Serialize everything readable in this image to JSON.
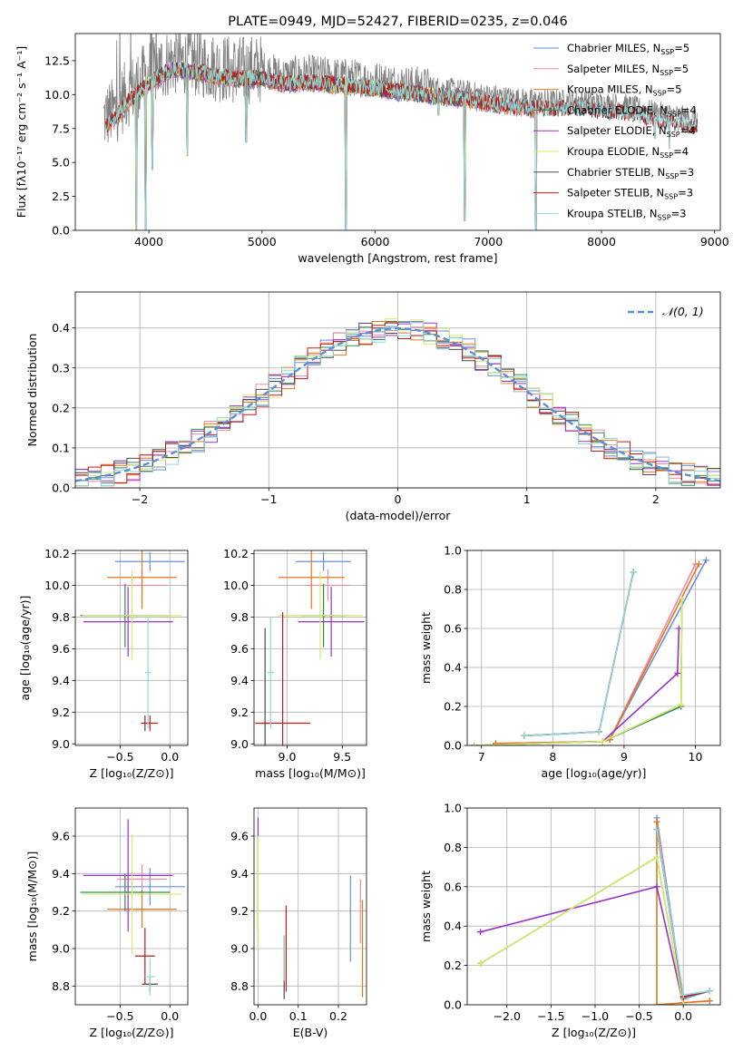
{
  "colors": {
    "chabrier_miles": "#6a8fdb",
    "salpeter_miles": "#ef8aa4",
    "kroupa_miles": "#e5771b",
    "chabrier_elodie": "#2e8b57",
    "salpeter_elodie": "#9b30c9",
    "kroupa_elodie": "#d4ec6b",
    "chabrier_stelib": "#4a4a4a",
    "salpeter_stelib": "#c21a1a",
    "kroupa_stelib": "#8fdad7",
    "data_spectrum": "#808080",
    "normal_curve": "#5b8ed8"
  },
  "chart_data": [
    {
      "id": "spectrum",
      "type": "line",
      "title": "PLATE=0949, MJD=52427, FIBERID=0235, z=0.046",
      "xlabel": "wavelength [Angstrom, rest frame]",
      "ylabel": "Flux [fλ10⁻¹⁷ erg cm⁻² s⁻¹ A⁻¹]",
      "xlim": [
        3350,
        9050
      ],
      "ylim": [
        0,
        14.5
      ],
      "xticks": [
        "4000",
        "5000",
        "6000",
        "7000",
        "8000",
        "9000"
      ],
      "yticks": [
        "0.0",
        "2.5",
        "5.0",
        "7.5",
        "10.0",
        "12.5"
      ],
      "grid": false,
      "legend_position": "top-right",
      "legend": [
        {
          "label": "Chabrier MILES, N",
          "sub": "SSP",
          "suffix": "=5",
          "color_key": "chabrier_miles"
        },
        {
          "label": "Salpeter MILES, N",
          "sub": "SSP",
          "suffix": "=5",
          "color_key": "salpeter_miles"
        },
        {
          "label": "Kroupa MILES, N",
          "sub": "SSP",
          "suffix": "=5",
          "color_key": "kroupa_miles"
        },
        {
          "label": "Chabrier ELODIE, N",
          "sub": "SSP",
          "suffix": "=4",
          "color_key": "chabrier_elodie"
        },
        {
          "label": "Salpeter ELODIE, N",
          "sub": "SSP",
          "suffix": "=4",
          "color_key": "salpeter_elodie"
        },
        {
          "label": "Kroupa ELODIE, N",
          "sub": "SSP",
          "suffix": "=4",
          "color_key": "kroupa_elodie"
        },
        {
          "label": "Chabrier STELIB, N",
          "sub": "SSP",
          "suffix": "=3",
          "color_key": "chabrier_stelib"
        },
        {
          "label": "Salpeter STELIB, N",
          "sub": "SSP",
          "suffix": "=3",
          "color_key": "salpeter_stelib"
        },
        {
          "label": "Kroupa STELIB, N",
          "sub": "SSP",
          "suffix": "=3",
          "color_key": "kroupa_stelib"
        }
      ],
      "envelope": {
        "x": [
          3600,
          3700,
          3800,
          4000,
          4200,
          4400,
          4600,
          4800,
          5000,
          5200,
          5400,
          5600,
          5800,
          6000,
          6200,
          6400,
          6600,
          6800,
          7000,
          7200,
          7400,
          7600,
          7800,
          8000,
          8200,
          8400,
          8600,
          8800
        ],
        "y": [
          8.3,
          8.8,
          10.0,
          11.5,
          12.5,
          12.4,
          12.0,
          11.8,
          11.9,
          11.4,
          11.6,
          11.4,
          11.3,
          11.1,
          10.9,
          10.7,
          10.5,
          10.3,
          10.0,
          9.8,
          9.6,
          9.6,
          9.6,
          9.4,
          9.3,
          8.9,
          8.6,
          8.3
        ]
      },
      "dips": [
        {
          "x": 3890,
          "y": 0.0
        },
        {
          "x": 3970,
          "y": 0.0
        },
        {
          "x": 4030,
          "y": 4.5
        },
        {
          "x": 4340,
          "y": 5.5
        },
        {
          "x": 4860,
          "y": 6.5
        },
        {
          "x": 5740,
          "y": 0.0
        },
        {
          "x": 6560,
          "y": 8.5
        },
        {
          "x": 6790,
          "y": 0.7
        },
        {
          "x": 7420,
          "y": 0.0
        },
        {
          "x": 8470,
          "y": 6.8
        },
        {
          "x": 8600,
          "y": 6.0
        }
      ]
    },
    {
      "id": "residuals",
      "type": "line",
      "xlabel": "(data-model)/error",
      "ylabel": "Normed distribution",
      "xlim": [
        -2.5,
        2.5
      ],
      "ylim": [
        0,
        0.49
      ],
      "xticks": [
        -2,
        -1,
        0,
        1,
        2
      ],
      "xtick_labels": [
        "−2",
        "−1",
        "0",
        "1",
        "2"
      ],
      "yticks": [
        "0.0",
        "0.1",
        "0.2",
        "0.3",
        "0.4"
      ],
      "grid": true,
      "legend_position": "top-right",
      "legend": [
        {
          "label": "𝒩(0, 1)",
          "color_key": "normal_curve",
          "style": "dashed"
        }
      ],
      "bin_width": 0.1,
      "normal_curve": {
        "mean": 0,
        "sigma": 1
      }
    },
    {
      "id": "age_vs_Z",
      "type": "scatter",
      "xlabel": "Z [log₁₀(Z/Z⊙)]",
      "ylabel": "age  [log₁₀(age/yr)]",
      "xlim": [
        -0.95,
        0.18
      ],
      "ylim": [
        8.99,
        10.22
      ],
      "xticks": [
        "−0.5",
        "0.0"
      ],
      "yticks": [
        "9.0",
        "9.2",
        "9.4",
        "9.6",
        "9.8",
        "10.0",
        "10.2"
      ],
      "grid": true,
      "points": [
        {
          "color_key": "chabrier_miles",
          "x": -0.2,
          "xerr": 0.35,
          "y": 10.15,
          "yerr": 0.06
        },
        {
          "color_key": "salpeter_miles",
          "x": -0.28,
          "xerr": 0.25,
          "y": 10.0,
          "yerr": 0.1
        },
        {
          "color_key": "kroupa_miles",
          "x": -0.28,
          "xerr": 0.35,
          "y": 10.05,
          "yerr": 0.2
        },
        {
          "color_key": "chabrier_elodie",
          "x": -0.45,
          "xerr": 0.45,
          "y": 9.81,
          "yerr": 0.2
        },
        {
          "color_key": "salpeter_elodie",
          "x": -0.42,
          "xerr": 0.45,
          "y": 9.77,
          "yerr": 0.22
        },
        {
          "color_key": "kroupa_elodie",
          "x": -0.38,
          "xerr": 0.5,
          "y": 9.81,
          "yerr": 0.28
        },
        {
          "color_key": "chabrier_stelib",
          "x": -0.25,
          "xerr": 0.04,
          "y": 9.13,
          "yerr": 0.05
        },
        {
          "color_key": "salpeter_stelib",
          "x": -0.2,
          "xerr": 0.08,
          "y": 9.13,
          "yerr": 0.05
        },
        {
          "color_key": "kroupa_stelib",
          "x": -0.22,
          "xerr": 0.03,
          "y": 9.45,
          "yerr": 0.35
        }
      ]
    },
    {
      "id": "age_vs_mass",
      "type": "scatter",
      "xlabel": "mass [log₁₀(M/M⊙)]",
      "ylabel": "",
      "xlim": [
        8.7,
        9.72
      ],
      "ylim": [
        8.99,
        10.22
      ],
      "xticks": [
        "9.0",
        "9.5"
      ],
      "yticks": [
        "9.0",
        "9.2",
        "9.4",
        "9.6",
        "9.8",
        "10.0",
        "10.2"
      ],
      "grid": true,
      "points": [
        {
          "color_key": "chabrier_miles",
          "x": 9.33,
          "xerr": 0.25,
          "y": 10.15,
          "yerr": 0.06
        },
        {
          "color_key": "salpeter_miles",
          "x": 9.37,
          "xerr": 0.2,
          "y": 10.0,
          "yerr": 0.1
        },
        {
          "color_key": "kroupa_miles",
          "x": 9.22,
          "xerr": 0.3,
          "y": 10.05,
          "yerr": 0.2
        },
        {
          "color_key": "chabrier_elodie",
          "x": 9.33,
          "xerr": 0.2,
          "y": 9.81,
          "yerr": 0.2
        },
        {
          "color_key": "salpeter_elodie",
          "x": 9.4,
          "xerr": 0.3,
          "y": 9.77,
          "yerr": 0.22
        },
        {
          "color_key": "kroupa_elodie",
          "x": 9.3,
          "xerr": 0.38,
          "y": 9.81,
          "yerr": 0.28
        },
        {
          "color_key": "chabrier_stelib",
          "x": 8.8,
          "xerr": 0.04,
          "y": 9.13,
          "yerr": 0.6
        },
        {
          "color_key": "salpeter_stelib",
          "x": 8.96,
          "xerr": 0.25,
          "y": 9.13,
          "yerr": 0.7
        },
        {
          "color_key": "kroupa_stelib",
          "x": 8.85,
          "xerr": 0.03,
          "y": 9.45,
          "yerr": 0.35
        }
      ]
    },
    {
      "id": "weight_vs_age",
      "type": "line",
      "xlabel": "age  [log₁₀(age/yr)]",
      "ylabel": "mass weight",
      "xlim": [
        6.8,
        10.35
      ],
      "ylim": [
        0,
        1.0
      ],
      "xticks": [
        "7",
        "8",
        "9",
        "10"
      ],
      "yticks": [
        "0.0",
        "0.2",
        "0.4",
        "0.6",
        "0.8",
        "1.0"
      ],
      "grid": true,
      "series": [
        {
          "color_key": "chabrier_miles",
          "x": [
            7.2,
            8.7,
            8.8,
            10.15
          ],
          "y": [
            0.01,
            0.02,
            0.03,
            0.95
          ]
        },
        {
          "color_key": "salpeter_miles",
          "x": [
            7.2,
            8.7,
            8.8,
            10.0
          ],
          "y": [
            0.01,
            0.02,
            0.03,
            0.93
          ]
        },
        {
          "color_key": "kroupa_miles",
          "x": [
            7.2,
            8.7,
            8.8,
            10.05
          ],
          "y": [
            0.01,
            0.02,
            0.03,
            0.93
          ]
        },
        {
          "color_key": "chabrier_elodie",
          "x": [
            6.9,
            8.7,
            9.8,
            9.81
          ],
          "y": [
            0.0,
            0.02,
            0.2,
            0.75
          ]
        },
        {
          "color_key": "salpeter_elodie",
          "x": [
            6.9,
            8.7,
            9.75,
            9.77
          ],
          "y": [
            0.0,
            0.02,
            0.37,
            0.6
          ]
        },
        {
          "color_key": "kroupa_elodie",
          "x": [
            6.9,
            8.7,
            9.8,
            9.81
          ],
          "y": [
            0.0,
            0.02,
            0.21,
            0.75
          ]
        },
        {
          "color_key": "chabrier_stelib",
          "x": [
            7.6,
            8.65,
            9.13
          ],
          "y": [
            0.05,
            0.07,
            0.89
          ]
        },
        {
          "color_key": "salpeter_stelib",
          "x": [
            7.6,
            8.65,
            9.13
          ],
          "y": [
            0.05,
            0.07,
            0.89
          ]
        },
        {
          "color_key": "kroupa_stelib",
          "x": [
            7.6,
            8.65,
            9.13
          ],
          "y": [
            0.05,
            0.07,
            0.89
          ]
        }
      ]
    },
    {
      "id": "mass_vs_Z",
      "type": "scatter",
      "xlabel": "Z [log₁₀(Z/Z⊙)]",
      "ylabel": "mass [log₁₀(M/M⊙)]",
      "xlim": [
        -0.95,
        0.18
      ],
      "ylim": [
        8.7,
        9.75
      ],
      "xticks": [
        "−0.5",
        "0.0"
      ],
      "yticks": [
        "8.8",
        "9.0",
        "9.2",
        "9.4",
        "9.6"
      ],
      "grid": true,
      "points": [
        {
          "color_key": "chabrier_miles",
          "x": -0.2,
          "xerr": 0.35,
          "y": 9.33,
          "yerr": 0.1
        },
        {
          "color_key": "salpeter_miles",
          "x": -0.28,
          "xerr": 0.25,
          "y": 9.37,
          "yerr": 0.08
        },
        {
          "color_key": "kroupa_miles",
          "x": -0.28,
          "xerr": 0.35,
          "y": 9.21,
          "yerr": 0.1
        },
        {
          "color_key": "chabrier_elodie",
          "x": -0.45,
          "xerr": 0.45,
          "y": 9.3,
          "yerr": 0.1
        },
        {
          "color_key": "salpeter_elodie",
          "x": -0.42,
          "xerr": 0.45,
          "y": 9.39,
          "yerr": 0.3
        },
        {
          "color_key": "kroupa_elodie",
          "x": -0.38,
          "xerr": 0.5,
          "y": 9.29,
          "yerr": 0.32
        },
        {
          "color_key": "chabrier_stelib",
          "x": -0.2,
          "xerr": 0.08,
          "y": 8.81,
          "yerr": 0.04
        },
        {
          "color_key": "salpeter_stelib",
          "x": -0.25,
          "xerr": 0.1,
          "y": 8.96,
          "yerr": 0.15
        },
        {
          "color_key": "kroupa_stelib",
          "x": -0.2,
          "xerr": 0.05,
          "y": 8.85,
          "yerr": 0.1
        }
      ]
    },
    {
      "id": "mass_vs_ebv",
      "type": "scatter",
      "xlabel": "E(B-V)",
      "ylabel": "",
      "xlim": [
        -0.01,
        0.27
      ],
      "ylim": [
        8.7,
        9.75
      ],
      "xticks": [
        "0.0",
        "0.1",
        "0.2"
      ],
      "yticks": [
        "8.8",
        "9.0",
        "9.2",
        "9.4",
        "9.6"
      ],
      "grid": true,
      "points": [
        {
          "color_key": "chabrier_miles",
          "x": 0.23,
          "xerr": 0.0,
          "y": 9.16,
          "yerr": 0.23
        },
        {
          "color_key": "salpeter_miles",
          "x": 0.255,
          "xerr": 0.0,
          "y": 9.2,
          "yerr": 0.17
        },
        {
          "color_key": "kroupa_miles",
          "x": 0.26,
          "xerr": 0.0,
          "y": 9.0,
          "yerr": 0.26
        },
        {
          "color_key": "chabrier_elodie",
          "x": 0.0,
          "xerr": 0.0,
          "y": 9.3,
          "yerr": 0.3
        },
        {
          "color_key": "salpeter_elodie",
          "x": 0.0,
          "xerr": 0.0,
          "y": 9.4,
          "yerr": 0.3
        },
        {
          "color_key": "kroupa_elodie",
          "x": 0.0,
          "xerr": 0.0,
          "y": 9.3,
          "yerr": 0.3
        },
        {
          "color_key": "chabrier_stelib",
          "x": 0.065,
          "xerr": 0.0,
          "y": 8.9,
          "yerr": 0.17
        },
        {
          "color_key": "salpeter_stelib",
          "x": 0.07,
          "xerr": 0.0,
          "y": 9.0,
          "yerr": 0.23
        },
        {
          "color_key": "kroupa_stelib",
          "x": 0.065,
          "xerr": 0.0,
          "y": 8.95,
          "yerr": 0.12
        }
      ]
    },
    {
      "id": "weight_vs_Z",
      "type": "line",
      "xlabel": "Z [log₁₀(Z/Z⊙)]",
      "ylabel": "mass weight",
      "xlim": [
        -2.45,
        0.42
      ],
      "ylim": [
        0,
        1.0
      ],
      "xticks": [
        -2.0,
        -1.5,
        -1.0,
        -0.5,
        0.0
      ],
      "xtick_labels": [
        "−2.0",
        "−1.5",
        "−1.0",
        "−0.5",
        "0.0"
      ],
      "yticks": [
        "0.0",
        "0.2",
        "0.4",
        "0.6",
        "0.8",
        "1.0"
      ],
      "grid": true,
      "series": [
        {
          "color_key": "chabrier_miles",
          "x": [
            -0.3,
            0.0,
            0.3
          ],
          "y": [
            0.95,
            0.03,
            0.07
          ]
        },
        {
          "color_key": "salpeter_miles",
          "x": [
            -0.3,
            0.0,
            0.3
          ],
          "y": [
            0.93,
            0.01,
            0.02
          ]
        },
        {
          "color_key": "kroupa_miles",
          "x": [
            -0.3,
            -0.3,
            0.0,
            0.3
          ],
          "y": [
            0.93,
            0.0,
            0.01,
            0.02
          ]
        },
        {
          "color_key": "chabrier_elodie",
          "x": [
            -2.3,
            -0.3,
            0.0
          ],
          "y": [
            0.21,
            0.75,
            0.0
          ]
        },
        {
          "color_key": "salpeter_elodie",
          "x": [
            -2.3,
            -0.3,
            0.0
          ],
          "y": [
            0.37,
            0.6,
            0.0
          ]
        },
        {
          "color_key": "kroupa_elodie",
          "x": [
            -2.3,
            -0.3,
            0.0
          ],
          "y": [
            0.21,
            0.75,
            0.0
          ]
        },
        {
          "color_key": "chabrier_stelib",
          "x": [
            -0.3,
            0.0,
            0.3
          ],
          "y": [
            0.89,
            0.04,
            0.07
          ]
        },
        {
          "color_key": "salpeter_stelib",
          "x": [
            -0.3,
            0.0,
            0.3
          ],
          "y": [
            0.89,
            0.04,
            0.07
          ]
        },
        {
          "color_key": "kroupa_stelib",
          "x": [
            -0.3,
            0.0,
            0.3
          ],
          "y": [
            0.89,
            0.05,
            0.07
          ]
        }
      ]
    }
  ]
}
